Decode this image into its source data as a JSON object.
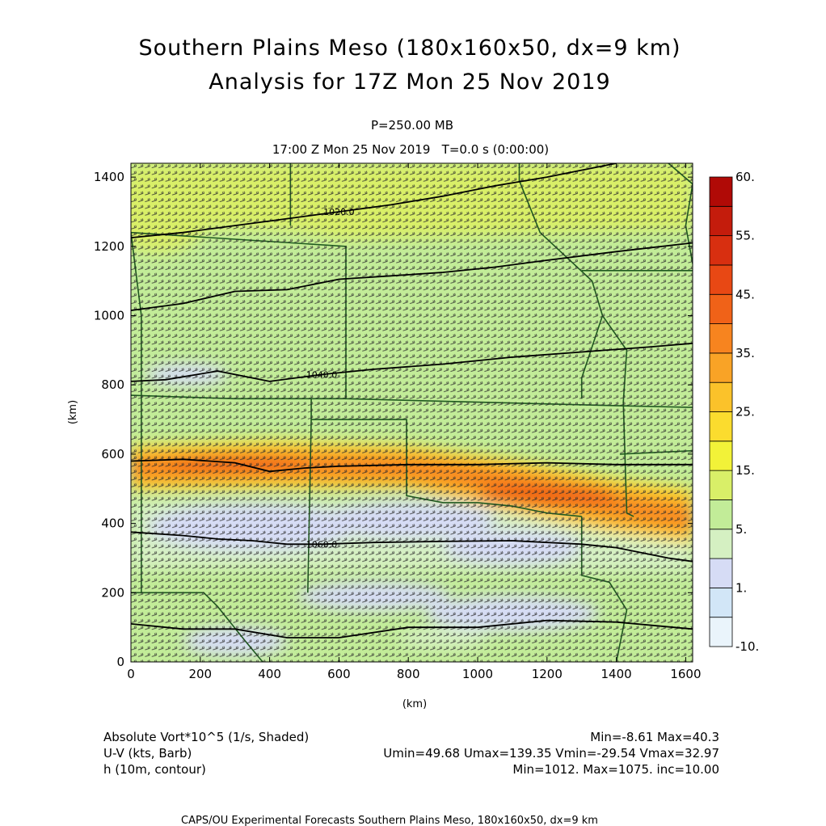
{
  "header": {
    "title_line1": "Southern Plains Meso (180x160x50, dx=9 km)",
    "title_line2": "Analysis for 17Z Mon 25 Nov 2019",
    "level": "P=250.00 MB",
    "time": "17:00 Z Mon 25 Nov 2019   T=0.0 s (0:00:00)"
  },
  "legend_info": {
    "row1_left": "Absolute Vort*10^5 (1/s, Shaded)",
    "row1_right": "Min=-8.61 Max=40.3",
    "row2_left": "U-V (kts, Barb)",
    "row2_right": "Umin=49.68 Umax=139.35 Vmin=-29.54 Vmax=32.97",
    "row3_left": "h (10m, contour)",
    "row3_right": "Min=1012. Max=1075. inc=10.00"
  },
  "footer": "CAPS/OU Experimental Forecasts  Southern Plains Meso, 180x160x50, dx=9 km",
  "colors": {
    "map_lines": "#1f5a1f",
    "contour": "#000000",
    "barb": "#2a2a2a"
  },
  "chart_data": {
    "type": "heatmap",
    "xlabel": "(km)",
    "ylabel": "(km)",
    "xlim": [
      0,
      1620
    ],
    "ylim": [
      0,
      1440
    ],
    "x_ticks": [
      0,
      200,
      400,
      600,
      800,
      1000,
      1200,
      1400,
      1600
    ],
    "y_ticks": [
      0,
      200,
      400,
      600,
      800,
      1000,
      1200,
      1400
    ],
    "shading": {
      "field": "Absolute Vort*10^5",
      "levels": [
        "-10.",
        "",
        "1.",
        "",
        "5.",
        "",
        "15.",
        "",
        "25.",
        "",
        "35.",
        "",
        "45.",
        "",
        "55.",
        "60."
      ],
      "colors": [
        "#eaf4fb",
        "#d2e6f7",
        "#d6dcf5",
        "#d5f0c2",
        "#c2ec98",
        "#d9ef68",
        "#f2f238",
        "#fbdc2e",
        "#fbc22a",
        "#f9a326",
        "#f7841f",
        "#f06218",
        "#e84814",
        "#d82f10",
        "#c41c0c",
        "#b00a06"
      ],
      "min": -8.61,
      "max": 40.3
    },
    "contours": [
      {
        "label": "1020.0",
        "points": [
          [
            0,
            1225
          ],
          [
            150,
            1240
          ],
          [
            300,
            1260
          ],
          [
            450,
            1280
          ],
          [
            600,
            1300
          ],
          [
            750,
            1320
          ],
          [
            900,
            1345
          ],
          [
            1050,
            1375
          ],
          [
            1200,
            1400
          ],
          [
            1400,
            1440
          ]
        ]
      },
      {
        "label": "",
        "points": [
          [
            0,
            1015
          ],
          [
            150,
            1035
          ],
          [
            300,
            1070
          ],
          [
            450,
            1075
          ],
          [
            600,
            1105
          ],
          [
            750,
            1115
          ],
          [
            900,
            1125
          ],
          [
            1050,
            1140
          ],
          [
            1200,
            1160
          ],
          [
            1400,
            1185
          ],
          [
            1620,
            1210
          ]
        ]
      },
      {
        "label": "1040.0",
        "points": [
          [
            0,
            810
          ],
          [
            100,
            815
          ],
          [
            250,
            840
          ],
          [
            400,
            810
          ],
          [
            550,
            830
          ],
          [
            700,
            845
          ],
          [
            900,
            860
          ],
          [
            1100,
            880
          ],
          [
            1300,
            895
          ],
          [
            1500,
            910
          ],
          [
            1620,
            920
          ]
        ]
      },
      {
        "label": "",
        "points": [
          [
            0,
            580
          ],
          [
            150,
            585
          ],
          [
            300,
            575
          ],
          [
            400,
            550
          ],
          [
            500,
            560
          ],
          [
            600,
            565
          ],
          [
            800,
            570
          ],
          [
            1000,
            570
          ],
          [
            1200,
            575
          ],
          [
            1400,
            570
          ],
          [
            1620,
            570
          ]
        ]
      },
      {
        "label": "1060.0",
        "points": [
          [
            0,
            375
          ],
          [
            150,
            365
          ],
          [
            250,
            355
          ],
          [
            350,
            350
          ],
          [
            450,
            340
          ],
          [
            550,
            340
          ],
          [
            700,
            345
          ],
          [
            900,
            348
          ],
          [
            1100,
            350
          ],
          [
            1300,
            340
          ],
          [
            1400,
            330
          ],
          [
            1550,
            300
          ],
          [
            1620,
            290
          ]
        ]
      },
      {
        "label": "",
        "points": [
          [
            0,
            110
          ],
          [
            150,
            95
          ],
          [
            300,
            95
          ],
          [
            450,
            70
          ],
          [
            600,
            70
          ],
          [
            800,
            100
          ],
          [
            1000,
            100
          ],
          [
            1200,
            120
          ],
          [
            1400,
            115
          ],
          [
            1620,
            95
          ]
        ]
      }
    ],
    "barb_stats": {
      "umin": 49.68,
      "umax": 139.35,
      "vmin": -29.54,
      "vmax": 32.97
    }
  }
}
